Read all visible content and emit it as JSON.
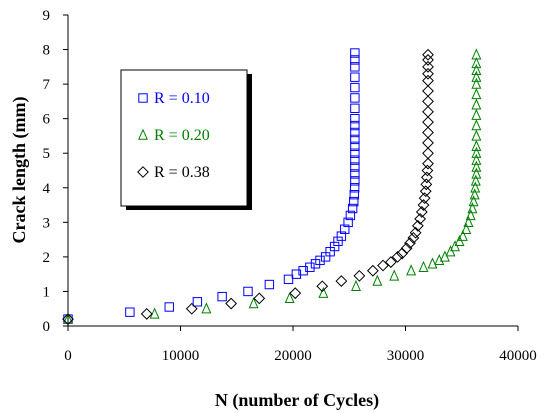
{
  "chart_data": {
    "type": "scatter",
    "xlabel": "N (number of Cycles)",
    "ylabel": "Crack length (mm)",
    "xlim": [
      0,
      40000
    ],
    "ylim": [
      0,
      9
    ],
    "xticks": [
      0,
      10000,
      20000,
      30000,
      40000
    ],
    "yticks": [
      0,
      1,
      2,
      3,
      4,
      5,
      6,
      7,
      8,
      9
    ],
    "grid": false,
    "legend_position": "upper-left",
    "series": [
      {
        "name": "R = 0.10",
        "color": "#0000ff",
        "marker": "square",
        "x": [
          0,
          5500,
          9000,
          11500,
          13700,
          16000,
          17900,
          19600,
          20300,
          20900,
          21500,
          22000,
          22400,
          22900,
          23300,
          23700,
          24000,
          24300,
          24600,
          24900,
          25100,
          25300,
          25400,
          25450,
          25480,
          25500,
          25500,
          25500,
          25500,
          25500,
          25500,
          25500,
          25500,
          25500,
          25500,
          25500,
          25500,
          25500,
          25500,
          25500,
          25500,
          25500
        ],
        "y": [
          0.2,
          0.4,
          0.55,
          0.7,
          0.85,
          1.0,
          1.2,
          1.35,
          1.5,
          1.6,
          1.7,
          1.8,
          1.9,
          2.0,
          2.15,
          2.3,
          2.45,
          2.6,
          2.8,
          3.0,
          3.2,
          3.4,
          3.6,
          3.8,
          4.0,
          4.2,
          4.4,
          4.6,
          4.8,
          5.0,
          5.2,
          5.4,
          5.6,
          5.8,
          6.0,
          6.3,
          6.6,
          6.9,
          7.2,
          7.5,
          7.7,
          7.9
        ]
      },
      {
        "name": "R = 0.20",
        "color": "#008000",
        "marker": "triangle",
        "x": [
          0,
          7700,
          12300,
          16500,
          19700,
          22700,
          25600,
          27500,
          29000,
          30500,
          31600,
          32400,
          33000,
          33500,
          34000,
          34400,
          34800,
          35100,
          35400,
          35600,
          35800,
          35950,
          36050,
          36150,
          36200,
          36250,
          36300,
          36300,
          36300,
          36300,
          36300,
          36300,
          36300,
          36300,
          36300,
          36300,
          36300,
          36300,
          36300,
          36300,
          36300
        ],
        "y": [
          0.2,
          0.35,
          0.5,
          0.65,
          0.8,
          0.95,
          1.15,
          1.3,
          1.45,
          1.6,
          1.7,
          1.8,
          1.9,
          2.0,
          2.15,
          2.3,
          2.45,
          2.6,
          2.8,
          3.0,
          3.2,
          3.4,
          3.6,
          3.8,
          4.0,
          4.2,
          4.4,
          4.6,
          4.8,
          5.0,
          5.2,
          5.5,
          5.8,
          6.1,
          6.4,
          6.7,
          7.0,
          7.2,
          7.4,
          7.6,
          7.85
        ]
      },
      {
        "name": "R = 0.38",
        "color": "#000000",
        "marker": "diamond",
        "x": [
          0,
          7000,
          11000,
          14500,
          17000,
          20200,
          22600,
          24300,
          25900,
          27100,
          28000,
          28700,
          29300,
          29700,
          30100,
          30400,
          30700,
          30900,
          31100,
          31300,
          31450,
          31600,
          31700,
          31800,
          31850,
          31900,
          31950,
          32000,
          32000,
          32000,
          32000,
          32000,
          32000,
          32000,
          32000,
          32000,
          32000,
          32000,
          32000,
          32000
        ],
        "y": [
          0.2,
          0.35,
          0.5,
          0.65,
          0.8,
          0.95,
          1.15,
          1.3,
          1.45,
          1.6,
          1.75,
          1.85,
          2.0,
          2.1,
          2.25,
          2.4,
          2.55,
          2.7,
          2.9,
          3.1,
          3.3,
          3.5,
          3.7,
          3.9,
          4.1,
          4.3,
          4.5,
          4.7,
          5.0,
          5.3,
          5.6,
          5.9,
          6.2,
          6.5,
          6.8,
          7.1,
          7.3,
          7.5,
          7.7,
          7.85
        ]
      }
    ]
  }
}
